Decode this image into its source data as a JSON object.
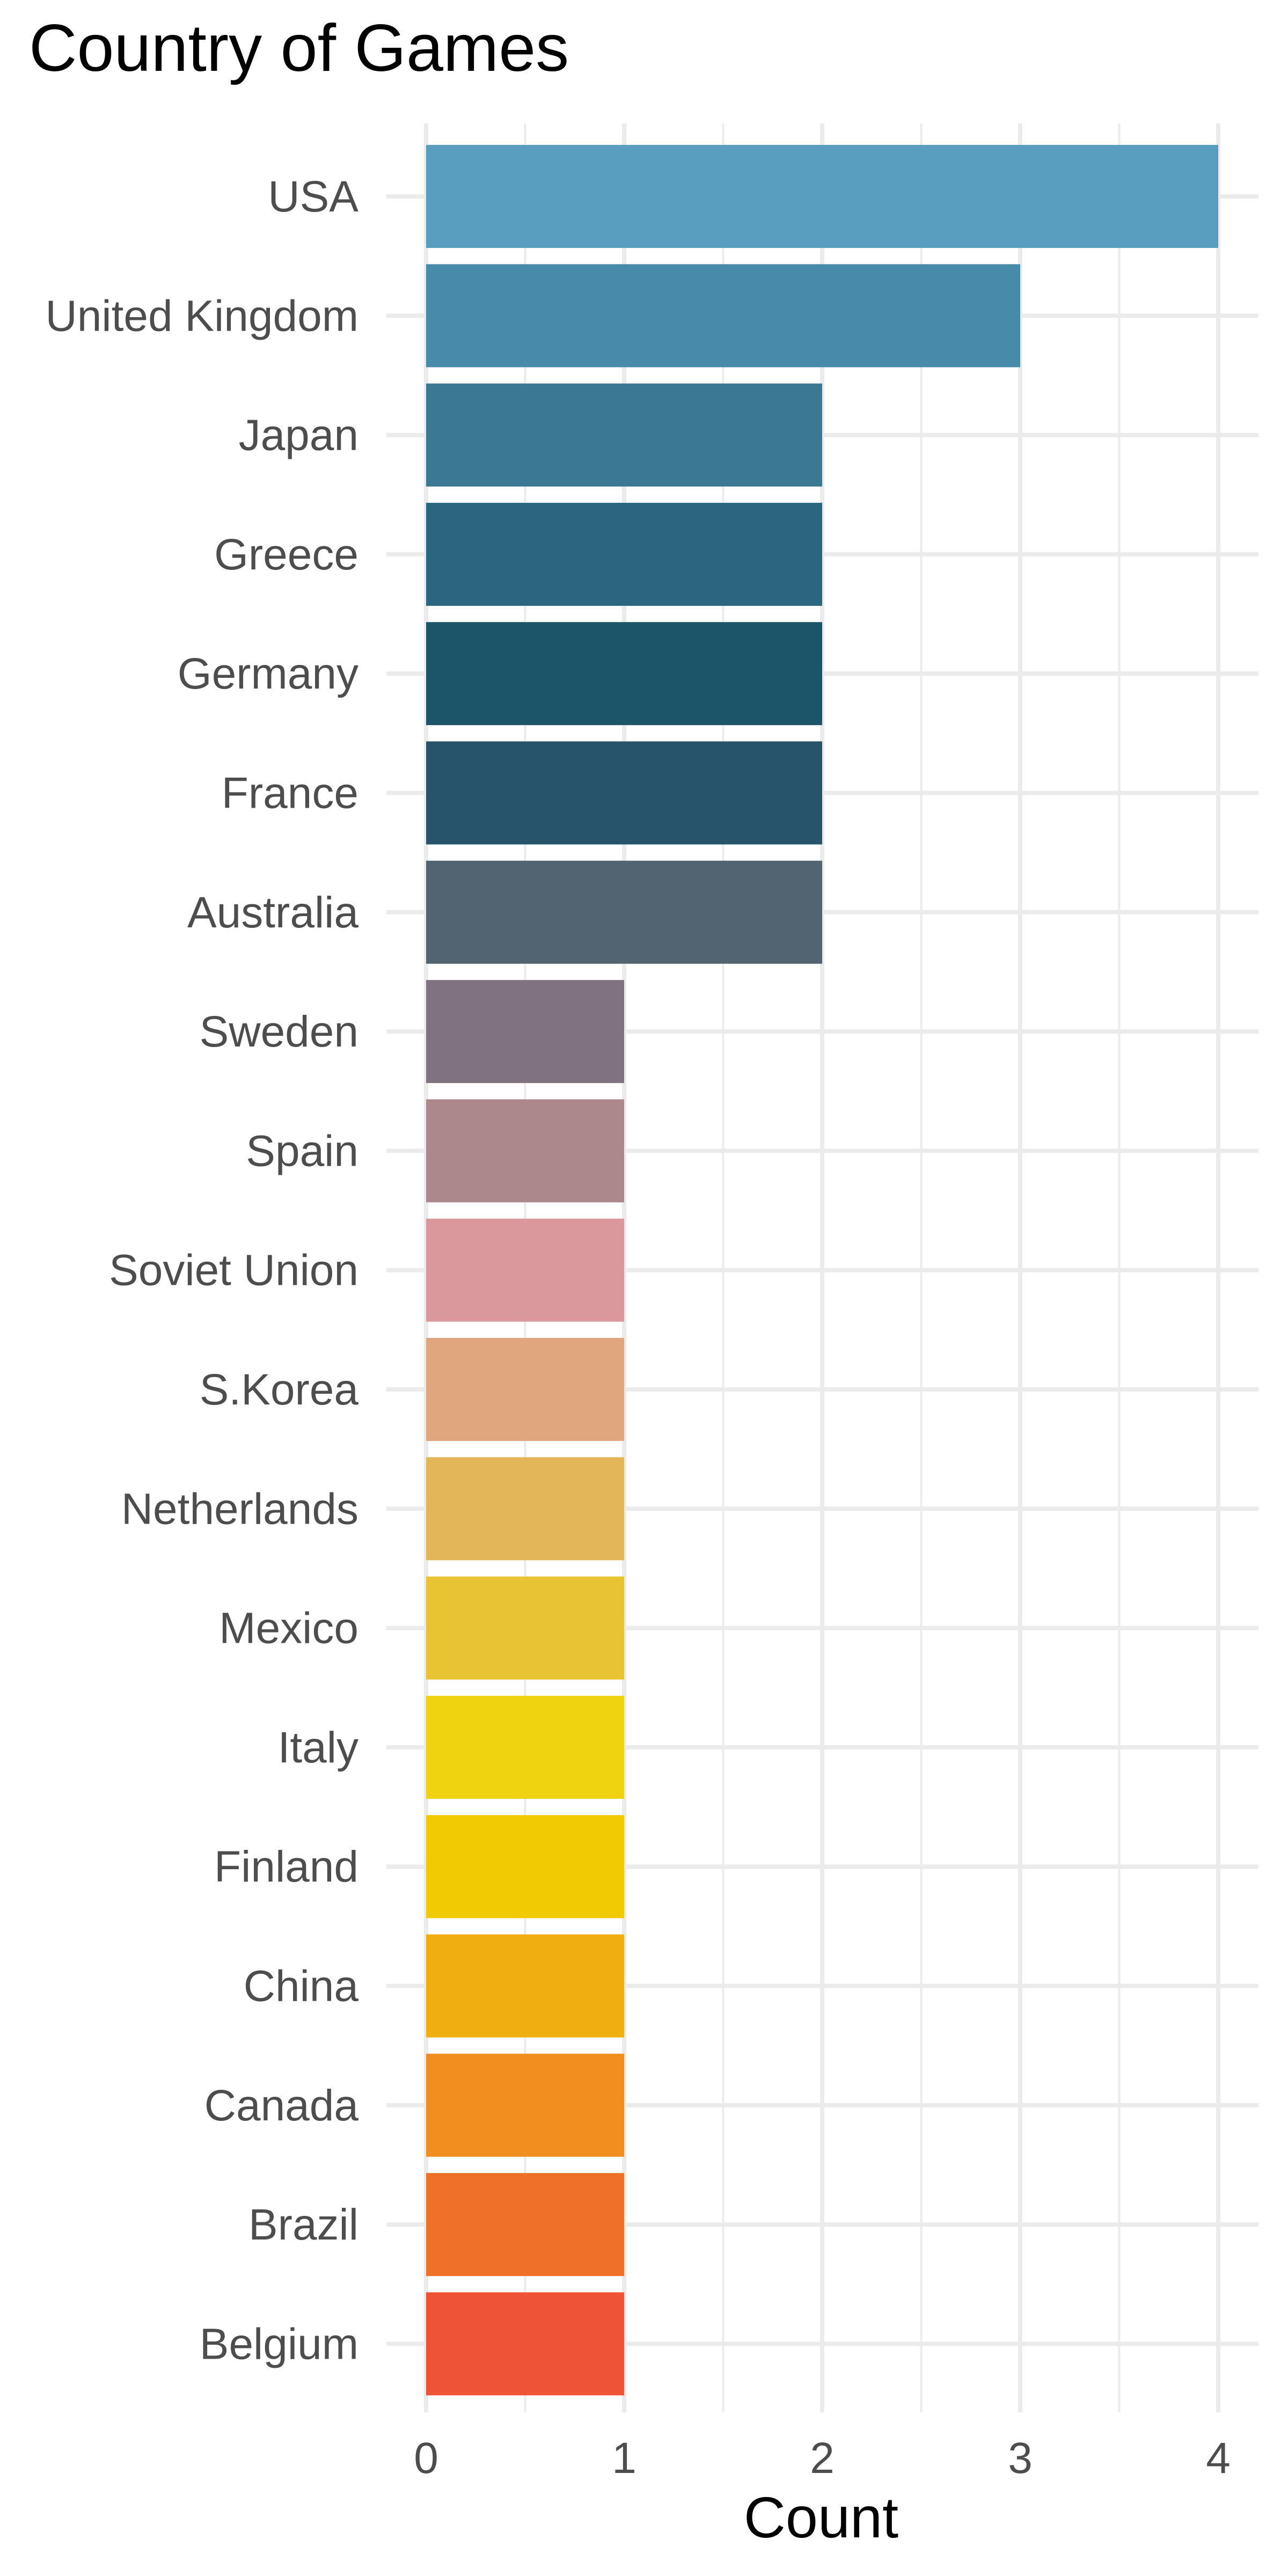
{
  "chart_data": {
    "type": "bar",
    "orientation": "horizontal",
    "title": "Country of Games",
    "xlabel": "Count",
    "ylabel": "",
    "xlim": [
      0,
      4
    ],
    "x_ticks": [
      "0",
      "1",
      "2",
      "3",
      "4"
    ],
    "grid": true,
    "legend": "none",
    "categories": [
      "USA",
      "United Kingdom",
      "Japan",
      "Greece",
      "Germany",
      "France",
      "Australia",
      "Sweden",
      "Spain",
      "Soviet Union",
      "S.Korea",
      "Netherlands",
      "Mexico",
      "Italy",
      "Finland",
      "China",
      "Canada",
      "Brazil",
      "Belgium"
    ],
    "values": [
      4,
      3,
      2,
      2,
      2,
      2,
      2,
      1,
      1,
      1,
      1,
      1,
      1,
      1,
      1,
      1,
      1,
      1,
      1
    ],
    "colors": [
      "#599DBF",
      "#488AAA",
      "#3A7893",
      "#2A6680",
      "#1C546A",
      "#27546A",
      "#526472",
      "#80737F",
      "#AC878B",
      "#DA989C",
      "#E0A67E",
      "#E3B65A",
      "#E8C434",
      "#EFD310",
      "#F2CA04",
      "#F0AE11",
      "#F08F20",
      "#EF7028",
      "#EF5335"
    ]
  }
}
